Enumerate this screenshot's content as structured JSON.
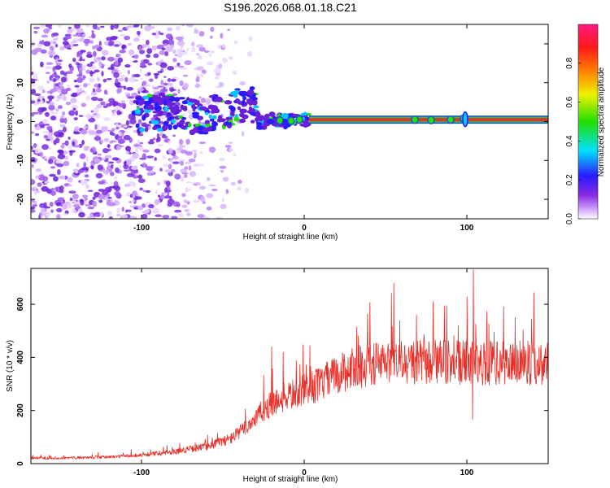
{
  "title": "S196.2026.068.01.18.C21",
  "colors": {
    "signal_line": "#e8302a",
    "strip_center": "#e8302a",
    "strip_mid": "#22c84a",
    "strip_edge": "#1a55c8",
    "speckle": "#7a2ee0"
  },
  "chart_data": [
    {
      "type": "heatmap",
      "title": "S196.2026.068.01.18.C21",
      "xlabel": "Height of straight line (km)",
      "ylabel": "Frequency (Hz)",
      "xlim": [
        -168,
        150
      ],
      "ylim": [
        -25,
        25
      ],
      "xticks": [
        -100,
        0,
        100
      ],
      "yticks": [
        -20,
        -10,
        0,
        10,
        20
      ],
      "colorbar": {
        "label": "Normalized spectral amplitude",
        "range": [
          0,
          1
        ],
        "ticks": [
          "0.0",
          "0.2",
          "0.4",
          "0.6",
          "0.8"
        ],
        "tick_values": [
          0.0,
          0.2,
          0.4,
          0.6,
          0.8
        ],
        "stops": [
          "#ffffff",
          "#d9b3ff",
          "#8a2be2",
          "#2a1aff",
          "#00e0ff",
          "#22e000",
          "#f0f000",
          "#ff8000",
          "#ff1a1a",
          "#ff1a80"
        ]
      },
      "center_line": {
        "x_start": 3,
        "x_end": 150,
        "frequency": 0.5
      },
      "ridge": [
        [
          -105,
          1.5
        ],
        [
          -95,
          2.5
        ],
        [
          -85,
          2.5
        ],
        [
          -75,
          1.5
        ],
        [
          -65,
          1.0
        ],
        [
          -55,
          2.5
        ],
        [
          -45,
          3.5
        ],
        [
          -35,
          4.5
        ],
        [
          -30,
          4.0
        ],
        [
          -28,
          -0.5
        ],
        [
          -20,
          0.8
        ],
        [
          -15,
          0.3
        ],
        [
          -10,
          0.0
        ],
        [
          -5,
          0.6
        ],
        [
          0,
          0.4
        ],
        [
          3,
          0.5
        ]
      ],
      "noise_x_range": [
        -168,
        -30
      ],
      "noise_density_ramp": [
        -105,
        -35
      ]
    },
    {
      "type": "line",
      "xlabel": "Height of straight line (km)",
      "ylabel": "SNR (10 * v/v)",
      "xlim": [
        -168,
        150
      ],
      "ylim": [
        0,
        735
      ],
      "xticks": [
        -100,
        0,
        100
      ],
      "yticks": [
        0,
        200,
        400,
        600
      ],
      "series": [
        {
          "name": "SNR",
          "profile": [
            [
              -168,
              20
            ],
            [
              -140,
              22
            ],
            [
              -120,
              25
            ],
            [
              -100,
              32
            ],
            [
              -80,
              45
            ],
            [
              -60,
              65
            ],
            [
              -45,
              95
            ],
            [
              -35,
              140
            ],
            [
              -28,
              185
            ],
            [
              -20,
              225
            ],
            [
              -10,
              255
            ],
            [
              0,
              275
            ],
            [
              10,
              300
            ],
            [
              20,
              335
            ],
            [
              30,
              360
            ],
            [
              40,
              375
            ],
            [
              60,
              380
            ],
            [
              80,
              382
            ],
            [
              100,
              378
            ],
            [
              120,
              378
            ],
            [
              150,
              378
            ]
          ],
          "spikes": [
            [
              -20,
              440
            ],
            [
              -13,
              420
            ],
            [
              104,
              730
            ]
          ],
          "dips": [
            [
              104,
              165
            ]
          ]
        }
      ]
    }
  ]
}
